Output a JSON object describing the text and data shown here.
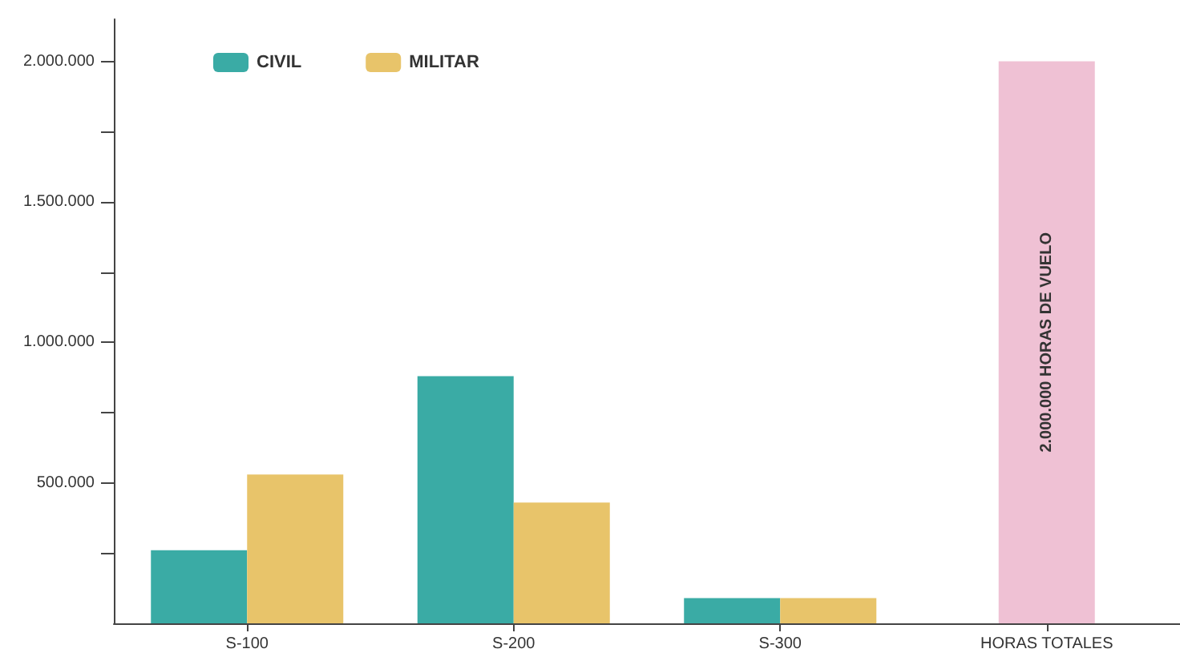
{
  "chart_data": {
    "type": "bar",
    "categories": [
      "S-100",
      "S-200",
      "S-300",
      "HORAS TOTALES"
    ],
    "series": [
      {
        "name": "CIVIL",
        "color": "#3aaba5",
        "values": [
          260000,
          880000,
          90000,
          null
        ]
      },
      {
        "name": "MILITAR",
        "color": "#e8c46a",
        "values": [
          530000,
          430000,
          90000,
          null
        ]
      },
      {
        "color": "#efc1d4",
        "values": [
          null,
          null,
          null,
          2000000
        ],
        "value_labels": [
          null,
          null,
          null,
          "2.000.000 HORAS DE VUELO"
        ]
      }
    ],
    "ylim": [
      0,
      2150000
    ],
    "yticks": [
      {
        "value": 250000,
        "label": null
      },
      {
        "value": 500000,
        "label": "500.000"
      },
      {
        "value": 750000,
        "label": null
      },
      {
        "value": 1000000,
        "label": "1.000.000"
      },
      {
        "value": 1250000,
        "label": null
      },
      {
        "value": 1500000,
        "label": "1.500.000"
      },
      {
        "value": 1750000,
        "label": null
      },
      {
        "value": 2000000,
        "label": "2.000.000"
      }
    ],
    "grid": false,
    "legend": "top left"
  }
}
